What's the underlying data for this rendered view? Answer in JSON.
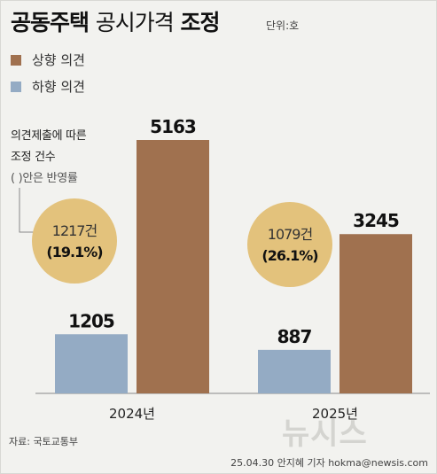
{
  "title_bold_a": "공동주택",
  "title_light": "공시가격",
  "title_bold_b": "조정",
  "unit": "단위:호",
  "legend": [
    {
      "label": "상향 의견",
      "color": "#a0714f"
    },
    {
      "label": "하향 의견",
      "color": "#94abc4"
    }
  ],
  "note": {
    "line1": "의견제출에 따른",
    "line2": "조정 건수",
    "line3": "( )안은 반영률"
  },
  "source": "자료: 국토교통부",
  "credit": "25.04.30 안지혜 기자 hokma@newsis.com",
  "watermark": "뉴시스",
  "bubble_color": "#e3c27c",
  "chart_data": {
    "type": "bar",
    "categories": [
      "2024년",
      "2025년"
    ],
    "series": [
      {
        "name": "하향 의견",
        "values": [
          1205,
          887
        ],
        "color": "#94abc4"
      },
      {
        "name": "상향 의견",
        "values": [
          5163,
          3245
        ],
        "color": "#a0714f"
      }
    ],
    "annotations": [
      {
        "category": "2024년",
        "line1": "1217건",
        "line2": "(19.1%)"
      },
      {
        "category": "2025년",
        "line1": "1079건",
        "line2": "(26.1%)"
      }
    ],
    "ylim": [
      0,
      5163
    ]
  }
}
